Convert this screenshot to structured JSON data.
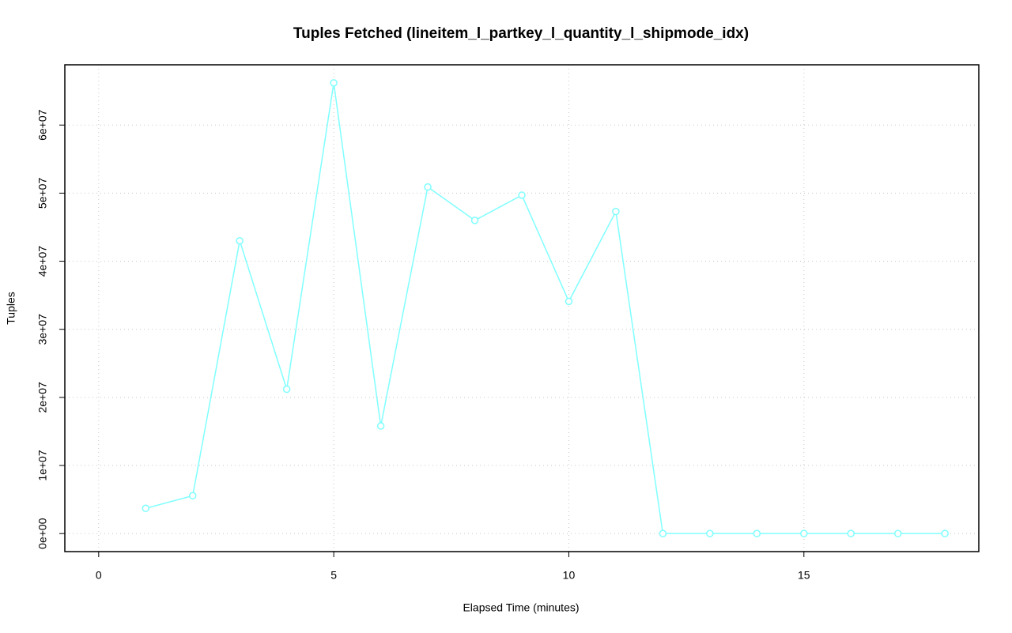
{
  "chart_data": {
    "type": "line",
    "title": "Tuples Fetched (lineitem_l_partkey_l_quantity_l_shipmode_idx)",
    "x_label": "Elapsed Time (minutes)",
    "y_label": "Tuples",
    "x": [
      1,
      2,
      3,
      4,
      5,
      6,
      7,
      8,
      9,
      10,
      11,
      12,
      13,
      14,
      15,
      16,
      17,
      18
    ],
    "values": [
      3700000,
      5560000,
      43000000,
      21200000,
      66200000,
      15800000,
      50900000,
      46000000,
      49700000,
      34100000,
      47300000,
      0,
      0,
      0,
      0,
      0,
      0,
      0
    ],
    "color": "#80ffff",
    "xlim": [
      -0.72,
      18.72
    ],
    "xticks": [
      0,
      5,
      10,
      15
    ],
    "ylim": [
      -2650000,
      68850000
    ],
    "yticks": [
      {
        "value": 0,
        "label": "0e+00"
      },
      {
        "value": 10000000,
        "label": "1e+07"
      },
      {
        "value": 20000000,
        "label": "2e+07"
      },
      {
        "value": 30000000,
        "label": "3e+07"
      },
      {
        "value": 40000000,
        "label": "4e+07"
      },
      {
        "value": 50000000,
        "label": "5e+07"
      },
      {
        "value": 60000000,
        "label": "6e+07"
      }
    ],
    "grid": true
  }
}
